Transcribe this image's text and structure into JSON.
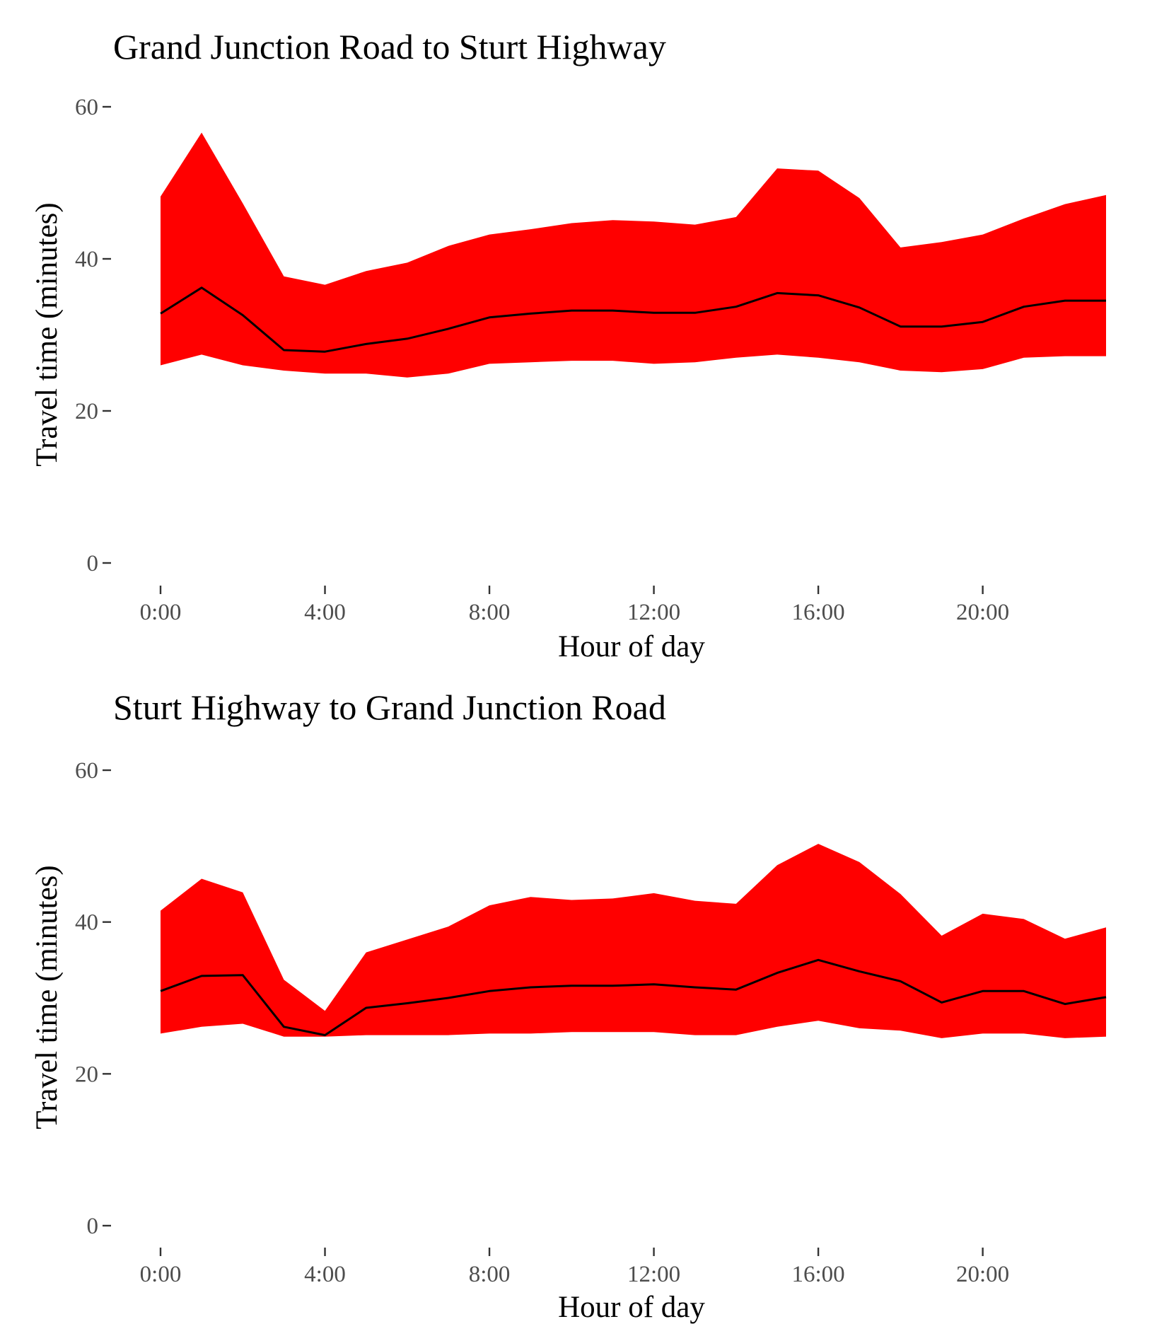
{
  "chart_data": [
    {
      "type": "area",
      "title": "Grand Junction Road to Sturt Highway",
      "xlabel": "Hour of day",
      "ylabel": "Travel time (minutes)",
      "xlim": [
        0,
        23
      ],
      "ylim": [
        0,
        60
      ],
      "x_ticks": [
        0,
        4,
        8,
        12,
        16,
        20
      ],
      "x_tick_labels": [
        "0:00",
        "4:00",
        "8:00",
        "12:00",
        "16:00",
        "20:00"
      ],
      "y_ticks": [
        0,
        20,
        40,
        60
      ],
      "y_tick_labels": [
        "0",
        "20",
        "40",
        "60"
      ],
      "grid": false,
      "band_color": "#ff0000",
      "line_color": "#000000",
      "x": [
        0,
        1,
        2,
        3,
        4,
        5,
        6,
        7,
        8,
        9,
        10,
        11,
        12,
        13,
        14,
        15,
        16,
        17,
        18,
        19,
        20,
        21,
        22,
        23
      ],
      "upper": [
        48.2,
        56.6,
        47.3,
        37.7,
        36.6,
        38.4,
        39.5,
        41.7,
        43.2,
        43.9,
        44.7,
        45.1,
        44.9,
        44.5,
        45.5,
        51.9,
        51.6,
        48.0,
        41.5,
        42.2,
        43.2,
        45.3,
        47.2,
        48.4
      ],
      "median": [
        32.8,
        36.2,
        32.6,
        28.0,
        27.8,
        28.8,
        29.5,
        30.8,
        32.3,
        32.8,
        33.2,
        33.2,
        32.9,
        32.9,
        33.7,
        35.5,
        35.2,
        33.6,
        31.1,
        31.1,
        31.7,
        33.7,
        34.5,
        34.5
      ],
      "lower": [
        26.0,
        27.4,
        26.0,
        25.3,
        24.9,
        24.9,
        24.4,
        24.9,
        26.2,
        26.4,
        26.6,
        26.6,
        26.2,
        26.4,
        27.0,
        27.4,
        27.0,
        26.4,
        25.3,
        25.1,
        25.5,
        27.0,
        27.2,
        27.2
      ]
    },
    {
      "type": "area",
      "title": "Sturt Highway to Grand Junction Road",
      "xlabel": "Hour of day",
      "ylabel": "Travel time (minutes)",
      "xlim": [
        0,
        23
      ],
      "ylim": [
        0,
        60
      ],
      "x_ticks": [
        0,
        4,
        8,
        12,
        16,
        20
      ],
      "x_tick_labels": [
        "0:00",
        "4:00",
        "8:00",
        "12:00",
        "16:00",
        "20:00"
      ],
      "y_ticks": [
        0,
        20,
        40,
        60
      ],
      "y_tick_labels": [
        "0",
        "20",
        "40",
        "60"
      ],
      "grid": false,
      "band_color": "#ff0000",
      "line_color": "#000000",
      "x": [
        0,
        1,
        2,
        3,
        4,
        5,
        6,
        7,
        8,
        9,
        10,
        11,
        12,
        13,
        14,
        15,
        16,
        17,
        18,
        19,
        20,
        21,
        22,
        23
      ],
      "upper": [
        41.5,
        45.7,
        43.9,
        32.4,
        28.3,
        36.0,
        37.7,
        39.4,
        42.2,
        43.3,
        42.9,
        43.1,
        43.8,
        42.8,
        42.4,
        47.5,
        50.3,
        47.9,
        43.7,
        38.2,
        41.1,
        40.4,
        37.8,
        39.3
      ],
      "median": [
        30.9,
        32.9,
        33.0,
        26.2,
        25.1,
        28.7,
        29.3,
        30.0,
        30.9,
        31.4,
        31.6,
        31.6,
        31.8,
        31.4,
        31.1,
        33.3,
        35.0,
        33.5,
        32.2,
        29.4,
        30.9,
        30.9,
        29.2,
        30.1
      ],
      "lower": [
        25.3,
        26.2,
        26.6,
        24.9,
        24.9,
        25.1,
        25.1,
        25.1,
        25.3,
        25.3,
        25.5,
        25.5,
        25.5,
        25.1,
        25.1,
        26.2,
        27.0,
        26.0,
        25.7,
        24.7,
        25.3,
        25.3,
        24.7,
        24.9
      ]
    }
  ]
}
